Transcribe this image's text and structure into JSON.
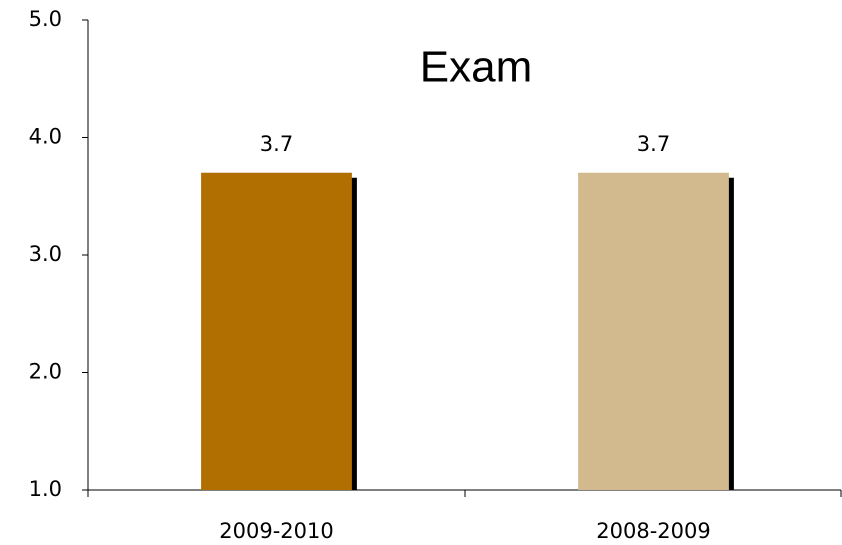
{
  "chart_data": {
    "type": "bar",
    "title": "Exam",
    "categories": [
      "2009-2010",
      "2008-2009"
    ],
    "values": [
      3.7,
      3.7
    ],
    "colors": [
      "#b06f00",
      "#d2b98e"
    ],
    "ylim": [
      1,
      5
    ],
    "yticks": [
      {
        "value": 1,
        "label": "1.0"
      },
      {
        "value": 2,
        "label": "2.0"
      },
      {
        "value": 3,
        "label": "3.0"
      },
      {
        "value": 4,
        "label": "4.0"
      },
      {
        "value": 5,
        "label": "5.0"
      }
    ],
    "grid": false
  }
}
